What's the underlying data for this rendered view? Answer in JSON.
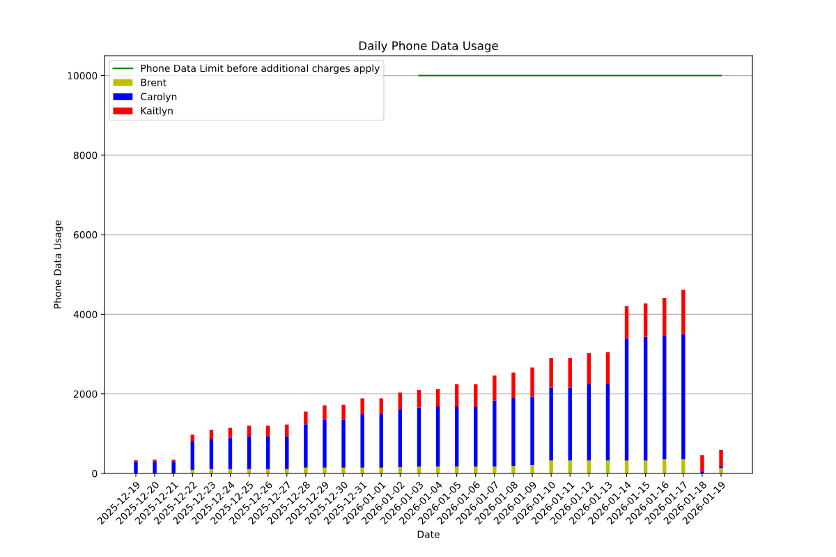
{
  "chart_data": {
    "type": "bar",
    "title": "Daily Phone Data Usage",
    "xlabel": "Date",
    "ylabel": "Phone Data Usage",
    "stacked": true,
    "categories": [
      "2025-12-19",
      "2025-12-20",
      "2025-12-21",
      "2025-12-22",
      "2025-12-23",
      "2025-12-24",
      "2025-12-25",
      "2025-12-26",
      "2025-12-27",
      "2025-12-28",
      "2025-12-29",
      "2025-12-30",
      "2025-12-31",
      "2026-01-01",
      "2026-01-02",
      "2026-01-03",
      "2026-01-04",
      "2026-01-05",
      "2026-01-06",
      "2026-01-07",
      "2026-01-08",
      "2026-01-09",
      "2026-01-10",
      "2026-01-11",
      "2026-01-12",
      "2026-01-13",
      "2026-01-14",
      "2026-01-15",
      "2026-01-16",
      "2026-01-17",
      "2026-01-18",
      "2026-01-19"
    ],
    "series": [
      {
        "name": "Phone Data Limit before additional charges apply",
        "type": "line",
        "color": "#008000",
        "values": [
          null,
          null,
          null,
          null,
          null,
          null,
          null,
          null,
          null,
          null,
          null,
          null,
          null,
          null,
          null,
          10000,
          10000,
          10000,
          10000,
          10000,
          10000,
          10000,
          10000,
          10000,
          10000,
          10000,
          10000,
          10000,
          10000,
          10000,
          10000,
          10000
        ]
      },
      {
        "name": "Brent",
        "color": "#bfbf00",
        "values": [
          null,
          null,
          null,
          90,
          110,
          110,
          110,
          110,
          110,
          145,
          145,
          145,
          145,
          145,
          160,
          175,
          175,
          175,
          175,
          175,
          190,
          210,
          325,
          325,
          325,
          325,
          325,
          325,
          360,
          360,
          0,
          135
        ]
      },
      {
        "name": "Carolyn",
        "color": "#0000ff",
        "values": [
          300,
          300,
          300,
          715,
          750,
          785,
          820,
          820,
          820,
          1090,
          1205,
          1205,
          1345,
          1345,
          1455,
          1480,
          1505,
          1505,
          1505,
          1655,
          1700,
          1720,
          1835,
          1835,
          1915,
          1915,
          3065,
          3110,
          3100,
          3145,
          50,
          50
        ]
      },
      {
        "name": "Kaitlyn",
        "color": "#ff0000",
        "values": [
          30,
          45,
          45,
          170,
          235,
          250,
          270,
          270,
          300,
          320,
          360,
          375,
          395,
          395,
          420,
          445,
          440,
          560,
          560,
          630,
          645,
          735,
          745,
          745,
          785,
          805,
          815,
          840,
          950,
          1110,
          410,
          410
        ]
      }
    ],
    "ylim": [
      0,
      10500
    ],
    "yticks": [
      0,
      2000,
      4000,
      6000,
      8000,
      10000
    ],
    "grid": "y",
    "legend": "top left"
  }
}
